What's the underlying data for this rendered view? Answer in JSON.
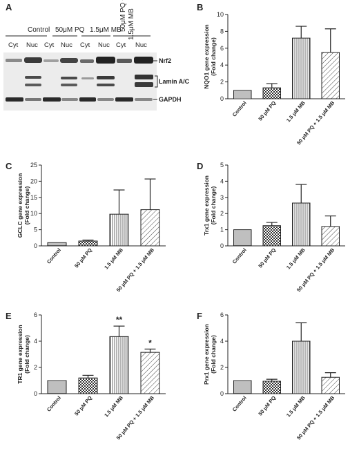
{
  "blot": {
    "letter": "A",
    "conditions": [
      "Control",
      "50μM PQ",
      "1.5μM MB",
      "50μM PQ +",
      "1.5μM MB"
    ],
    "fractions": [
      "Cyt",
      "Nuc",
      "Cyt",
      "Nuc",
      "Cyt",
      "Nuc",
      "Cyt",
      "Nuc"
    ],
    "bands": [
      "Nrf2",
      "Lamin A/C",
      "GAPDH"
    ]
  },
  "categories": [
    "Control",
    "50 μM PQ",
    "1.5 μM MB",
    "50 μM PQ + 1.5 μM MB"
  ],
  "chart_data": [
    {
      "type": "bar",
      "letter": "B",
      "ylabel": "NQO1 gene expression",
      "ylabel2": "(Fold change)",
      "ylim": [
        0,
        10
      ],
      "yticks": [
        0,
        2,
        4,
        6,
        8,
        10
      ],
      "values": [
        1.0,
        1.3,
        7.2,
        5.5
      ],
      "errors": [
        0,
        0.5,
        1.4,
        2.8
      ],
      "annotations": [
        "",
        "",
        "",
        ""
      ]
    },
    {
      "type": "bar",
      "letter": "C",
      "ylabel": "GCLC gene expression",
      "ylabel2": "(Fold change)",
      "ylim": [
        0,
        25
      ],
      "yticks": [
        0,
        5,
        10,
        15,
        20,
        25
      ],
      "values": [
        1.0,
        1.5,
        9.8,
        11.2
      ],
      "errors": [
        0,
        0.3,
        7.5,
        9.5
      ],
      "annotations": [
        "",
        "",
        "",
        ""
      ]
    },
    {
      "type": "bar",
      "letter": "D",
      "ylabel": "Trx1 gene expression",
      "ylabel2": "(Fold change)",
      "ylim": [
        0,
        5
      ],
      "yticks": [
        0,
        1,
        2,
        3,
        4,
        5
      ],
      "values": [
        1.0,
        1.25,
        2.65,
        1.2
      ],
      "errors": [
        0,
        0.2,
        1.15,
        0.65
      ],
      "annotations": [
        "",
        "",
        "",
        ""
      ]
    },
    {
      "type": "bar",
      "letter": "E",
      "ylabel": "TR1 gene expression",
      "ylabel2": "(Fold change)",
      "ylim": [
        0,
        6
      ],
      "yticks": [
        0,
        2,
        4,
        6
      ],
      "values": [
        1.0,
        1.2,
        4.35,
        3.15
      ],
      "errors": [
        0,
        0.2,
        0.8,
        0.25
      ],
      "annotations": [
        "",
        "",
        "**",
        "*"
      ]
    },
    {
      "type": "bar",
      "letter": "F",
      "ylabel": "Prx1 gene expression",
      "ylabel2": "(Fold change)",
      "ylim": [
        0,
        6
      ],
      "yticks": [
        0,
        2,
        4,
        6
      ],
      "values": [
        1.0,
        0.95,
        4.0,
        1.25
      ],
      "errors": [
        0,
        0.15,
        1.4,
        0.35
      ],
      "annotations": [
        "",
        "",
        "",
        ""
      ]
    }
  ]
}
